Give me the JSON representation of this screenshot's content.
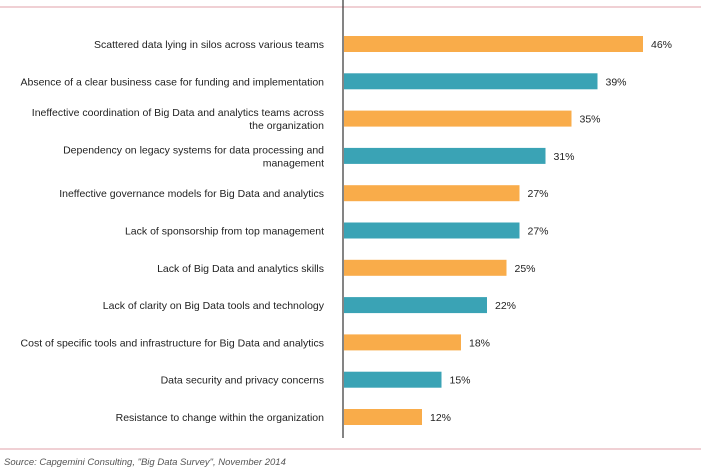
{
  "chart_data": {
    "type": "bar",
    "orientation": "horizontal",
    "categories": [
      "Scattered data lying in silos across various teams",
      "Absence of a clear business case for funding and implementation",
      "Ineffective coordination of Big Data and analytics teams across the organization",
      "Dependency on legacy systems for data processing and management",
      "Ineffective governance models for Big Data and analytics",
      "Lack of sponsorship from top management",
      "Lack of Big Data and analytics skills",
      "Lack of clarity on Big Data tools and technology",
      "Cost of specific tools and infrastructure for Big Data and analytics",
      "Data security and privacy concerns",
      "Resistance to change within the organization"
    ],
    "category_lines": [
      [
        "Scattered data lying in silos across various teams"
      ],
      [
        "Absence of a clear business case for funding and implementation"
      ],
      [
        "Ineffective coordination of Big Data and analytics teams across",
        "the organization"
      ],
      [
        "Dependency on legacy systems for data processing and",
        "management"
      ],
      [
        "Ineffective governance models for Big Data and analytics"
      ],
      [
        "Lack of sponsorship from top management"
      ],
      [
        "Lack of Big Data and analytics skills"
      ],
      [
        "Lack of clarity on Big Data tools and technology"
      ],
      [
        "Cost of specific tools and infrastructure for Big Data and analytics"
      ],
      [
        "Data security and privacy concerns"
      ],
      [
        "Resistance to change within the organization"
      ]
    ],
    "values": [
      46,
      39,
      35,
      31,
      27,
      27,
      25,
      22,
      18,
      15,
      12
    ],
    "value_labels": [
      "46%",
      "39%",
      "35%",
      "31%",
      "27%",
      "27%",
      "25%",
      "22%",
      "18%",
      "15%",
      "12%"
    ],
    "bar_colors": [
      "#F9AC4A",
      "#3AA3B5",
      "#F9AC4A",
      "#3AA3B5",
      "#F9AC4A",
      "#3AA3B5",
      "#F9AC4A",
      "#3AA3B5",
      "#F9AC4A",
      "#3AA3B5",
      "#F9AC4A"
    ],
    "xlim": [
      0,
      50
    ],
    "grid": false,
    "legend": "none",
    "title": "",
    "xlabel": "",
    "ylabel": ""
  },
  "colors": {
    "orange": "#F9AC4A",
    "teal": "#3AA3B5",
    "rule": "#E0A0A8",
    "axis": "#333333"
  },
  "source": "Source: Capgemini Consulting, \"Big Data Survey\", November 2014"
}
